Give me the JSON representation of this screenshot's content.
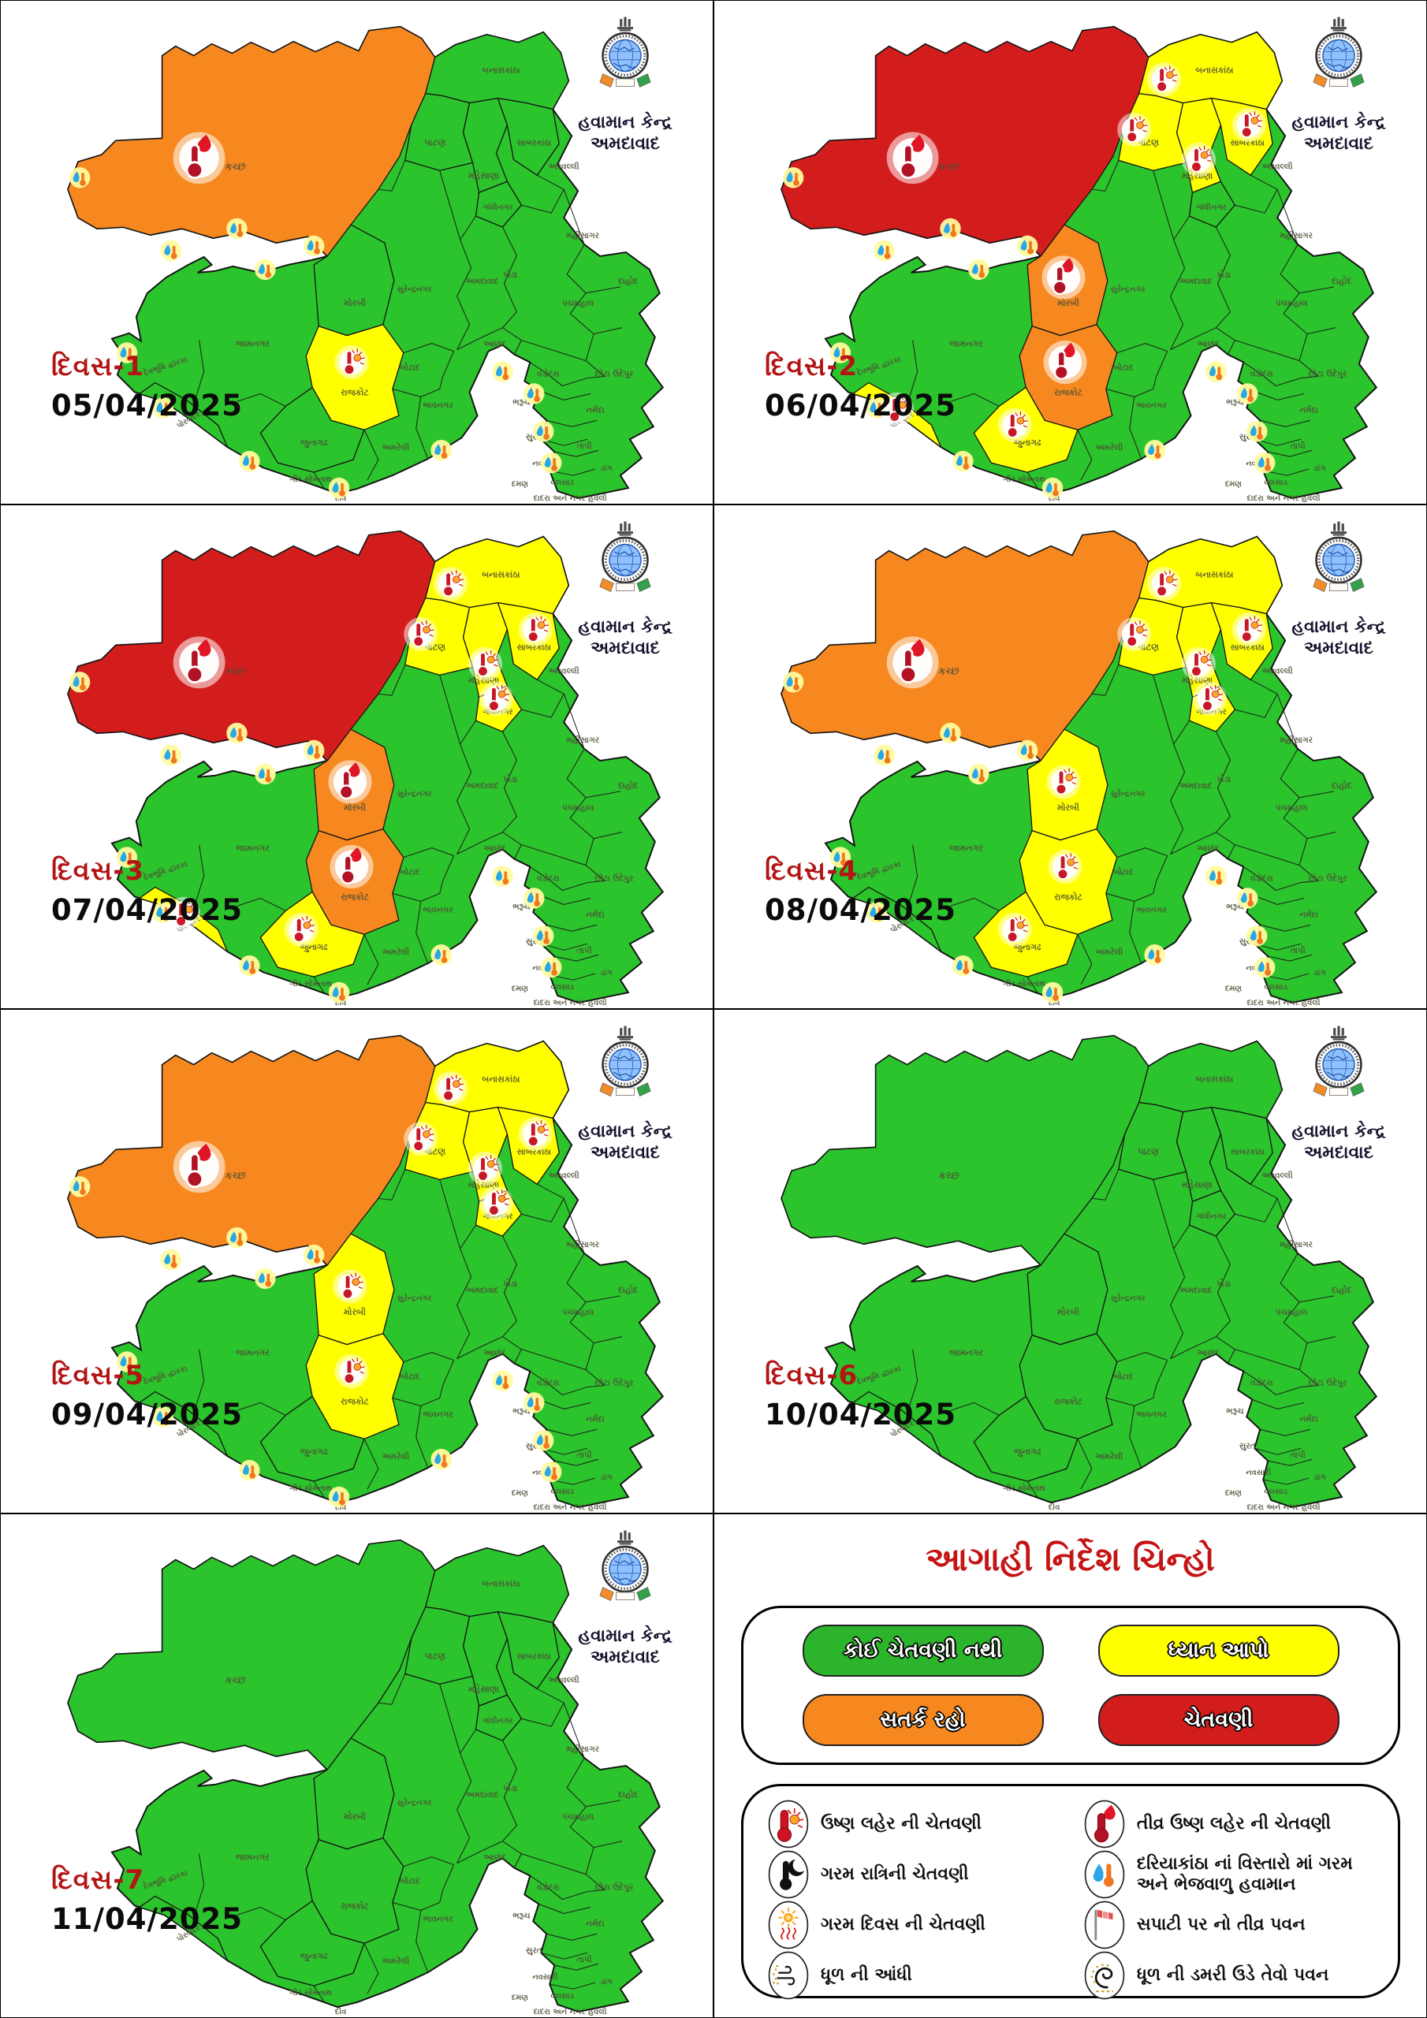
{
  "logo": {
    "line1": "હવામાન કેન્દ્ર",
    "line2": "અમદાવાદ"
  },
  "footer_note": "દાદરા અને નગર હવેલી",
  "warning_colors": {
    "none": "#2CC42C",
    "watch": "#FFFF00",
    "alert": "#F6881F",
    "warning": "#D31D1D"
  },
  "districts": [
    {
      "id": "kutch",
      "label": "કચ્છ"
    },
    {
      "id": "banaskantha",
      "label": "બનાસકાંઠા"
    },
    {
      "id": "patan",
      "label": "પાટણ"
    },
    {
      "id": "mehsana",
      "label": "મહેસાણા"
    },
    {
      "id": "sabarkantha",
      "label": "સાબરકાંઠા"
    },
    {
      "id": "aravalli",
      "label": "અરવલ્લી"
    },
    {
      "id": "gandhinagar",
      "label": "ગાંધીનગર"
    },
    {
      "id": "mahisagar",
      "label": "મહીસાગર"
    },
    {
      "id": "kheda",
      "label": "ખેડા"
    },
    {
      "id": "dahod",
      "label": "દાહોદ"
    },
    {
      "id": "panchmahal",
      "label": "પંચમહાલ"
    },
    {
      "id": "ahmedabad",
      "label": "અમદાવાદ"
    },
    {
      "id": "surendranagar",
      "label": "સુરેન્દ્રનગર"
    },
    {
      "id": "anand",
      "label": "આણંદ"
    },
    {
      "id": "vadodara",
      "label": "વડોદરા"
    },
    {
      "id": "chhota-udepur",
      "label": "છોટા ઉદેપુર"
    },
    {
      "id": "morbi",
      "label": "મોરબી"
    },
    {
      "id": "botad",
      "label": "બોટાદ"
    },
    {
      "id": "rajkot",
      "label": "રાજકોટ"
    },
    {
      "id": "jamnagar",
      "label": "જામનગર"
    },
    {
      "id": "devbhumi-dwarka",
      "label": "દેવભૂમિ દ્વારકા"
    },
    {
      "id": "porbandar",
      "label": "પોરબંદર"
    },
    {
      "id": "junagadh",
      "label": "જુનાગઢ"
    },
    {
      "id": "gir-somnath",
      "label": "ગીર સોમનાથ"
    },
    {
      "id": "amreli",
      "label": "અમરેલી"
    },
    {
      "id": "bhavnagar",
      "label": "ભાવનગર"
    },
    {
      "id": "bharuch",
      "label": "ભરૂચ"
    },
    {
      "id": "narmada",
      "label": "નર્મદા"
    },
    {
      "id": "surat",
      "label": "સુરત"
    },
    {
      "id": "tapi",
      "label": "તાપી"
    },
    {
      "id": "navsari",
      "label": "નવસારી"
    },
    {
      "id": "dang",
      "label": "ડાંગ"
    },
    {
      "id": "valsad",
      "label": "વલસાડ"
    },
    {
      "id": "daman",
      "label": "દમણ"
    },
    {
      "id": "diu",
      "label": "દીવ"
    }
  ],
  "panels": [
    {
      "day_label": "દિવસ-1",
      "date": "05/04/2025",
      "coastal": true,
      "levels": {
        "kutch": "alert",
        "rajkot": "watch"
      },
      "icons": [
        {
          "district": "kutch",
          "type": "severe-heat-wave"
        },
        {
          "district": "rajkot",
          "type": "heat-wave"
        }
      ]
    },
    {
      "day_label": "દિવસ-2",
      "date": "06/04/2025",
      "coastal": true,
      "levels": {
        "kutch": "warning",
        "banaskantha": "watch",
        "patan": "watch",
        "mehsana": "watch",
        "sabarkantha": "watch",
        "morbi": "alert",
        "rajkot": "alert",
        "porbandar": "watch",
        "junagadh": "watch"
      },
      "icons": [
        {
          "district": "kutch",
          "type": "severe-heat-wave"
        },
        {
          "district": "morbi",
          "type": "severe-heat-wave"
        },
        {
          "district": "rajkot",
          "type": "severe-heat-wave"
        },
        {
          "district": "banaskantha",
          "type": "heat-wave"
        },
        {
          "district": "patan",
          "type": "heat-wave"
        },
        {
          "district": "mehsana",
          "type": "heat-wave"
        },
        {
          "district": "sabarkantha",
          "type": "heat-wave"
        },
        {
          "district": "porbandar",
          "type": "heat-wave"
        },
        {
          "district": "junagadh",
          "type": "heat-wave"
        }
      ]
    },
    {
      "day_label": "દિવસ-3",
      "date": "07/04/2025",
      "coastal": true,
      "levels": {
        "kutch": "warning",
        "banaskantha": "watch",
        "patan": "watch",
        "mehsana": "watch",
        "sabarkantha": "watch",
        "gandhinagar": "watch",
        "morbi": "alert",
        "rajkot": "alert",
        "porbandar": "watch",
        "junagadh": "watch"
      },
      "icons": [
        {
          "district": "kutch",
          "type": "severe-heat-wave"
        },
        {
          "district": "morbi",
          "type": "severe-heat-wave"
        },
        {
          "district": "rajkot",
          "type": "severe-heat-wave"
        },
        {
          "district": "banaskantha",
          "type": "heat-wave"
        },
        {
          "district": "patan",
          "type": "heat-wave"
        },
        {
          "district": "mehsana",
          "type": "heat-wave"
        },
        {
          "district": "sabarkantha",
          "type": "heat-wave"
        },
        {
          "district": "gandhinagar",
          "type": "heat-wave"
        },
        {
          "district": "porbandar",
          "type": "heat-wave"
        },
        {
          "district": "junagadh",
          "type": "heat-wave"
        }
      ]
    },
    {
      "day_label": "દિવસ-4",
      "date": "08/04/2025",
      "coastal": true,
      "levels": {
        "kutch": "alert",
        "banaskantha": "watch",
        "patan": "watch",
        "mehsana": "watch",
        "sabarkantha": "watch",
        "gandhinagar": "watch",
        "morbi": "watch",
        "rajkot": "watch",
        "junagadh": "watch"
      },
      "icons": [
        {
          "district": "kutch",
          "type": "severe-heat-wave"
        },
        {
          "district": "banaskantha",
          "type": "heat-wave"
        },
        {
          "district": "patan",
          "type": "heat-wave"
        },
        {
          "district": "mehsana",
          "type": "heat-wave"
        },
        {
          "district": "sabarkantha",
          "type": "heat-wave"
        },
        {
          "district": "gandhinagar",
          "type": "heat-wave"
        },
        {
          "district": "morbi",
          "type": "heat-wave"
        },
        {
          "district": "rajkot",
          "type": "heat-wave"
        },
        {
          "district": "junagadh",
          "type": "heat-wave"
        }
      ]
    },
    {
      "day_label": "દિવસ-5",
      "date": "09/04/2025",
      "coastal": true,
      "levels": {
        "kutch": "alert",
        "banaskantha": "watch",
        "patan": "watch",
        "mehsana": "watch",
        "sabarkantha": "watch",
        "gandhinagar": "watch",
        "morbi": "watch",
        "rajkot": "watch"
      },
      "icons": [
        {
          "district": "kutch",
          "type": "severe-heat-wave"
        },
        {
          "district": "banaskantha",
          "type": "heat-wave"
        },
        {
          "district": "patan",
          "type": "heat-wave"
        },
        {
          "district": "mehsana",
          "type": "heat-wave"
        },
        {
          "district": "sabarkantha",
          "type": "heat-wave"
        },
        {
          "district": "gandhinagar",
          "type": "heat-wave"
        },
        {
          "district": "morbi",
          "type": "heat-wave"
        },
        {
          "district": "rajkot",
          "type": "heat-wave"
        }
      ]
    },
    {
      "day_label": "દિવસ-6",
      "date": "10/04/2025",
      "coastal": false,
      "levels": {},
      "icons": []
    },
    {
      "day_label": "દિવસ-7",
      "date": "11/04/2025",
      "coastal": false,
      "levels": {},
      "icons": []
    }
  ],
  "legend": {
    "title": "આગાહી નિર્દેશ ચિન્હો",
    "pills": [
      {
        "id": "no-warning",
        "label": "કોઈ ચેતવણી નથી",
        "color": "#2CB52C"
      },
      {
        "id": "watch",
        "label": "ધ્યાન આપો",
        "color": "#FFFF00"
      },
      {
        "id": "alert",
        "label": "સતર્ક રહો",
        "color": "#F6881F"
      },
      {
        "id": "warning",
        "label": "ચેતવણી",
        "color": "#D31D1D"
      }
    ],
    "items": [
      {
        "icon": "heat-wave",
        "label": "ઉષ્ણ લહેર ની ચેતવણી"
      },
      {
        "icon": "severe-heat-wave",
        "label": "તીવ્ર ઉષ્ણ લહેર ની ચેતવણી"
      },
      {
        "icon": "warm-night",
        "label": "ગરમ રાત્રિની ચેતવણી"
      },
      {
        "icon": "hot-humid",
        "label": "દરિયાકાંઠા નાં વિસ્તારો માં ગરમ અને ભેજવાળુ હવામાન"
      },
      {
        "icon": "hot-day",
        "label": "ગરમ દિવસ  ની ચેતવણી"
      },
      {
        "icon": "surface-wind",
        "label": "સપાટી પર નો તીવ્ર પવન"
      },
      {
        "icon": "dust-storm",
        "label": "ધૂળ ની આંધી"
      },
      {
        "icon": "dust-wind",
        "label": "ધૂળ ની ડમરી ઉડે તેવો પવન"
      }
    ]
  }
}
